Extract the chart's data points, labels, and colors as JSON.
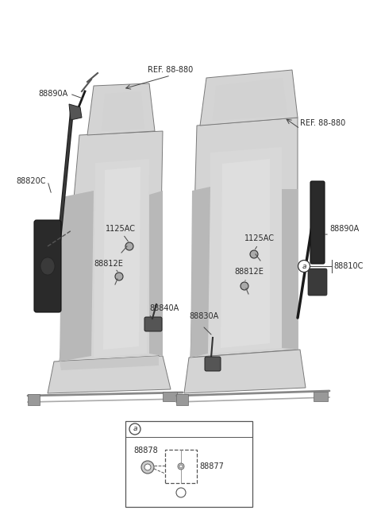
{
  "bg_color": "#ffffff",
  "fig_width": 4.8,
  "fig_height": 6.57,
  "dpi": 100,
  "labels": {
    "ref88880_left": "REF. 88-880",
    "ref88880_right": "REF. 88-880",
    "88890A_left": "88890A",
    "88890A_right": "88890A",
    "88820C": "88820C",
    "1125AC_left": "1125AC",
    "1125AC_right": "1125AC",
    "88812E_left": "88812E",
    "88812E_right": "88812E",
    "88840A": "88840A",
    "88830A": "88830A",
    "88810C": "88810C",
    "88878": "88878",
    "88877": "88877",
    "a_label": "a"
  },
  "text_color": "#2a2a2a",
  "line_color": "#444444",
  "seat_light": "#d4d4d4",
  "seat_mid": "#b8b8b8",
  "seat_dark": "#959595",
  "seat_edge": "#7a7a7a",
  "belt_color": "#1a1a1a",
  "retractor_color": "#3a3a3a"
}
